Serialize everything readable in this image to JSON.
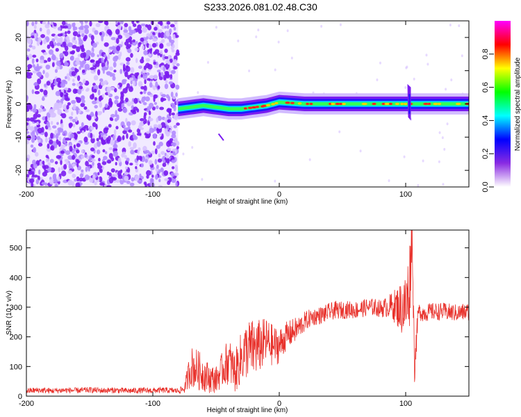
{
  "title": "S233.2026.081.02.48.C30",
  "colors": {
    "snr_line": "#e8302a",
    "scatter": "#7a1cf0",
    "scatter_light": "#d7c2ff",
    "colorbar_stops": [
      "#ffffff",
      "#8a2be2",
      "#0000ff",
      "#00ffff",
      "#00ff00",
      "#ffff00",
      "#ff0000",
      "#ff00ff"
    ]
  },
  "chart_data": [
    {
      "type": "heatmap",
      "name": "spectrogram",
      "title": "S233.2026.081.02.48.C30",
      "xlabel": "Height of straight line (km)",
      "ylabel": "Frequency (Hz)",
      "xlim": [
        -200,
        150
      ],
      "ylim": [
        -25,
        25
      ],
      "xticks": [
        -200,
        -100,
        0,
        100
      ],
      "yticks": [
        -20,
        -10,
        0,
        10,
        20
      ],
      "grid": false,
      "noise_region_x": [
        -200,
        -80
      ],
      "signal_band": {
        "x_start": -80,
        "x_end": 150,
        "center_freq": [
          [
            -80,
            -1.5
          ],
          [
            -70,
            -1
          ],
          [
            -60,
            -0.5
          ],
          [
            -50,
            -1
          ],
          [
            -40,
            -1.5
          ],
          [
            -30,
            -1.5
          ],
          [
            -20,
            -1
          ],
          [
            -10,
            -0.5
          ],
          [
            0,
            0.5
          ],
          [
            20,
            0
          ],
          [
            50,
            0
          ],
          [
            90,
            0
          ],
          [
            100,
            0
          ],
          [
            110,
            0
          ],
          [
            150,
            0
          ]
        ]
      },
      "colorbar": {
        "label": "Normalized spectral amplitude",
        "range": [
          0,
          1
        ],
        "ticks": [
          "0.0",
          "0.2",
          "0.4",
          "0.6",
          "0.8"
        ]
      }
    },
    {
      "type": "line",
      "name": "snr",
      "xlabel": "Height of straight line (km)",
      "ylabel": "SNR (10 * v/v)",
      "xlim": [
        -200,
        150
      ],
      "ylim": [
        0,
        560
      ],
      "xticks": [
        -200,
        -100,
        0,
        100
      ],
      "yticks": [
        0,
        100,
        200,
        300,
        400,
        500
      ],
      "grid": false,
      "series": [
        {
          "name": "SNR",
          "x": [
            -200,
            -190,
            -180,
            -170,
            -160,
            -150,
            -140,
            -130,
            -120,
            -110,
            -100,
            -90,
            -80,
            -75,
            -70,
            -65,
            -60,
            -55,
            -50,
            -45,
            -40,
            -35,
            -30,
            -25,
            -20,
            -15,
            -10,
            -5,
            0,
            5,
            10,
            15,
            20,
            25,
            30,
            35,
            40,
            45,
            50,
            55,
            60,
            65,
            70,
            75,
            80,
            85,
            90,
            95,
            100,
            103,
            105,
            107,
            110,
            115,
            120,
            130,
            140,
            150
          ],
          "values": [
            18,
            20,
            18,
            20,
            19,
            21,
            19,
            20,
            18,
            19,
            19,
            20,
            18,
            25,
            100,
            90,
            75,
            60,
            55,
            90,
            120,
            80,
            130,
            160,
            160,
            170,
            185,
            170,
            170,
            200,
            215,
            230,
            250,
            265,
            270,
            275,
            285,
            290,
            290,
            292,
            290,
            295,
            300,
            300,
            295,
            300,
            305,
            300,
            300,
            370,
            560,
            100,
            285,
            280,
            285,
            285,
            280,
            285
          ],
          "amplitude": [
            10,
            10,
            10,
            10,
            10,
            10,
            10,
            10,
            10,
            10,
            10,
            10,
            10,
            15,
            70,
            70,
            60,
            50,
            45,
            60,
            80,
            70,
            90,
            100,
            100,
            90,
            80,
            70,
            60,
            50,
            45,
            40,
            35,
            30,
            30,
            30,
            30,
            30,
            30,
            30,
            30,
            30,
            30,
            30,
            30,
            35,
            50,
            80,
            120,
            150,
            80,
            60,
            30,
            30,
            30,
            30,
            30,
            30
          ]
        }
      ]
    }
  ]
}
